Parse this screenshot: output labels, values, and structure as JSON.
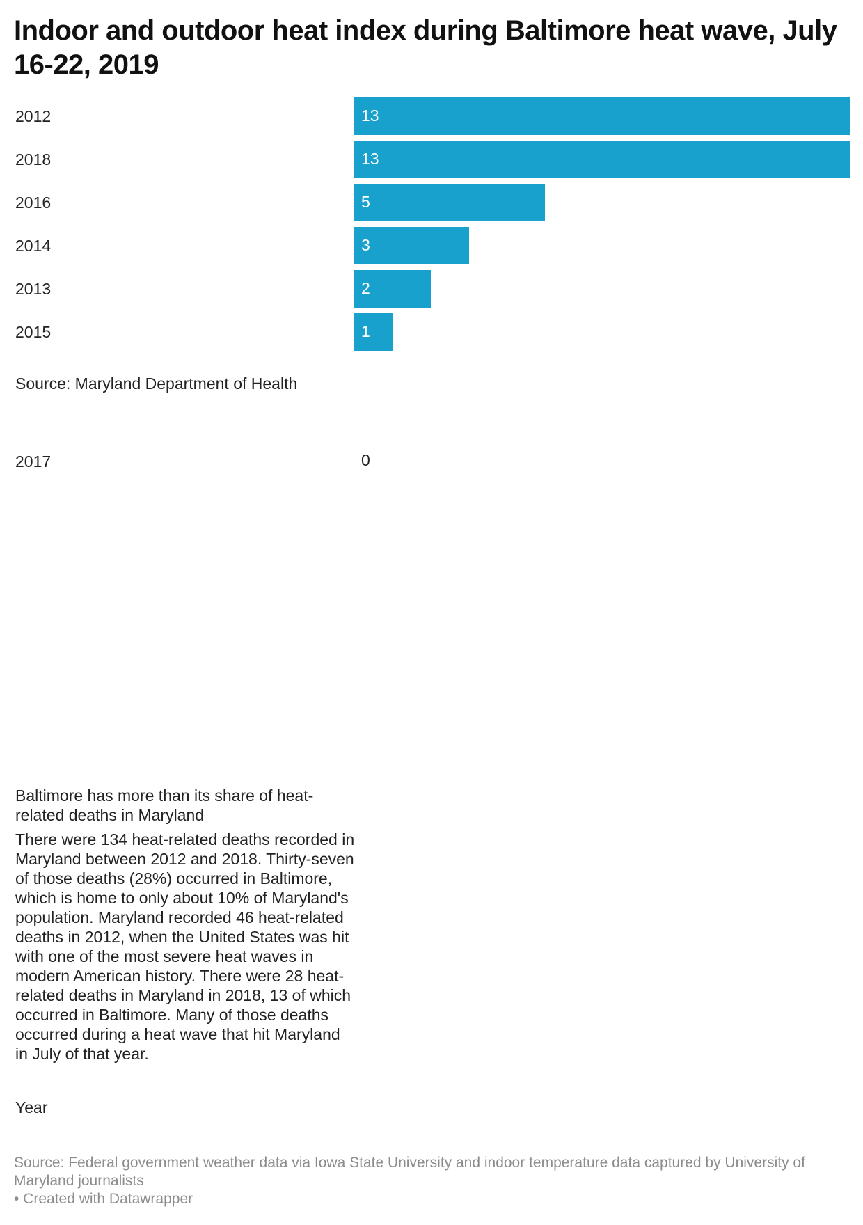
{
  "title": "Indoor and outdoor heat index during Baltimore heat wave, July 16-22, 2019",
  "chart_data": {
    "type": "bar",
    "orientation": "horizontal",
    "categories": [
      "2012",
      "2018",
      "2016",
      "2014",
      "2013",
      "2015"
    ],
    "values": [
      13,
      13,
      5,
      3,
      2,
      1
    ],
    "value_labels": [
      "13",
      "13",
      "5",
      "3",
      "2",
      "1"
    ],
    "xlim": [
      0,
      13
    ],
    "bar_color": "#18a1cd",
    "extra_row": {
      "category": "2017",
      "value": 0,
      "value_label": "0"
    },
    "source": "Source: Maryland Department of Health",
    "grid": false
  },
  "side_text": {
    "heading": "Baltimore has more than its share of heat-related deaths in Maryland",
    "body": "There were 134 heat-related deaths recorded in Maryland between 2012 and 2018. Thirty-seven of those deaths (28%) occurred in Baltimore, which is home to only about 10% of Maryland's population. Maryland recorded 46 heat-related deaths in 2012, when the United States was hit with one of the most severe heat waves in modern American history. There were 28 heat-related deaths in Maryland in 2018, 13 of which occurred in Baltimore. Many of those deaths occurred during a heat wave that hit Maryland in July of that year.",
    "year_label": "Year"
  },
  "footer": {
    "source": "Source: Federal government weather data via Iowa State University and indoor temperature data captured by University of Maryland journalists",
    "credit": "• Created with Datawrapper"
  }
}
